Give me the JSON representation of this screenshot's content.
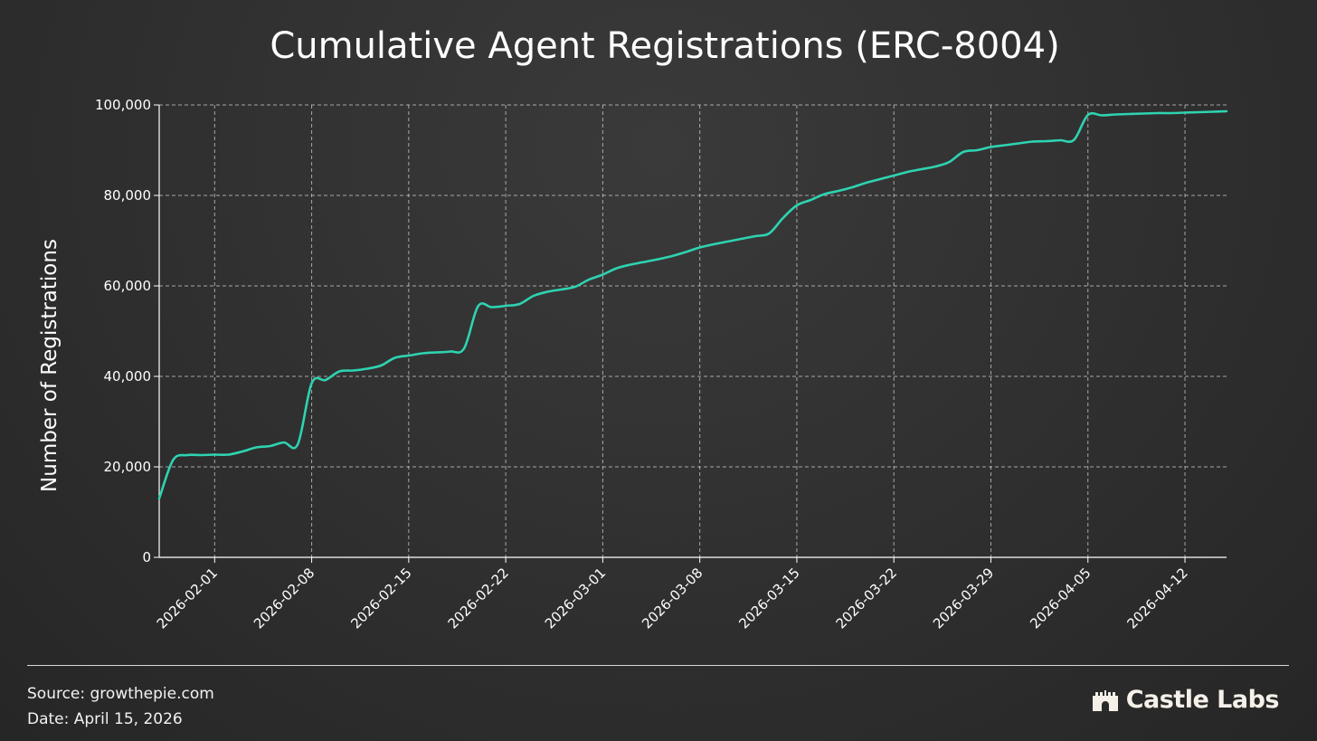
{
  "chart_data": {
    "type": "line",
    "title": "Cumulative Agent Registrations (ERC-8004)",
    "xlabel": "",
    "ylabel": "Number of Registrations",
    "ylim": [
      0,
      100000
    ],
    "xlim": [
      "2026-01-28",
      "2026-04-15"
    ],
    "grid": true,
    "line_color": "#2ed3b1",
    "y_ticks": [
      0,
      20000,
      40000,
      60000,
      80000,
      100000
    ],
    "y_tick_labels": [
      "0",
      "20,000",
      "40,000",
      "60,000",
      "80,000",
      "100,000"
    ],
    "x_ticks": [
      "2026-02-01",
      "2026-02-08",
      "2026-02-15",
      "2026-02-22",
      "2026-03-01",
      "2026-03-08",
      "2026-03-15",
      "2026-03-22",
      "2026-03-29",
      "2026-04-05",
      "2026-04-12"
    ],
    "x": [
      "2026-01-28",
      "2026-01-29",
      "2026-01-30",
      "2026-01-31",
      "2026-02-01",
      "2026-02-02",
      "2026-02-03",
      "2026-02-04",
      "2026-02-05",
      "2026-02-06",
      "2026-02-07",
      "2026-02-08",
      "2026-02-09",
      "2026-02-10",
      "2026-02-11",
      "2026-02-12",
      "2026-02-13",
      "2026-02-14",
      "2026-02-15",
      "2026-02-16",
      "2026-02-17",
      "2026-02-18",
      "2026-02-19",
      "2026-02-20",
      "2026-02-21",
      "2026-02-22",
      "2026-02-23",
      "2026-02-24",
      "2026-02-25",
      "2026-02-26",
      "2026-02-27",
      "2026-02-28",
      "2026-03-01",
      "2026-03-02",
      "2026-03-03",
      "2026-03-04",
      "2026-03-05",
      "2026-03-06",
      "2026-03-07",
      "2026-03-08",
      "2026-03-09",
      "2026-03-10",
      "2026-03-11",
      "2026-03-12",
      "2026-03-13",
      "2026-03-14",
      "2026-03-15",
      "2026-03-16",
      "2026-03-17",
      "2026-03-18",
      "2026-03-19",
      "2026-03-20",
      "2026-03-21",
      "2026-03-22",
      "2026-03-23",
      "2026-03-24",
      "2026-03-25",
      "2026-03-26",
      "2026-03-27",
      "2026-03-28",
      "2026-03-29",
      "2026-03-30",
      "2026-03-31",
      "2026-04-01",
      "2026-04-02",
      "2026-04-03",
      "2026-04-04",
      "2026-04-05",
      "2026-04-06",
      "2026-04-07",
      "2026-04-08",
      "2026-04-09",
      "2026-04-10",
      "2026-04-11",
      "2026-04-12",
      "2026-04-13",
      "2026-04-14",
      "2026-04-15"
    ],
    "series": [
      {
        "values": [
          13000,
          21500,
          22600,
          22600,
          22700,
          22700,
          23400,
          24300,
          24600,
          25400,
          25000,
          38500,
          39200,
          41100,
          41300,
          41700,
          42400,
          44100,
          44600,
          45100,
          45300,
          45500,
          46200,
          55500,
          55300,
          55600,
          56000,
          57800,
          58700,
          59200,
          59800,
          61400,
          62500,
          63900,
          64700,
          65300,
          65900,
          66600,
          67500,
          68500,
          69200,
          69800,
          70400,
          71000,
          71600,
          75000,
          77800,
          79000,
          80300,
          81000,
          81800,
          82800,
          83600,
          84400,
          85200,
          85800,
          86400,
          87400,
          89600,
          90000,
          90700,
          91100,
          91500,
          91900,
          92000,
          92200,
          92300,
          97800,
          97700,
          97900,
          98000,
          98100,
          98200,
          98200,
          98300,
          98400,
          98500,
          98600
        ]
      }
    ]
  },
  "footer": {
    "source": "Source: growthepie.com",
    "date": "Date: April 15, 2026",
    "brand": "Castle Labs"
  }
}
